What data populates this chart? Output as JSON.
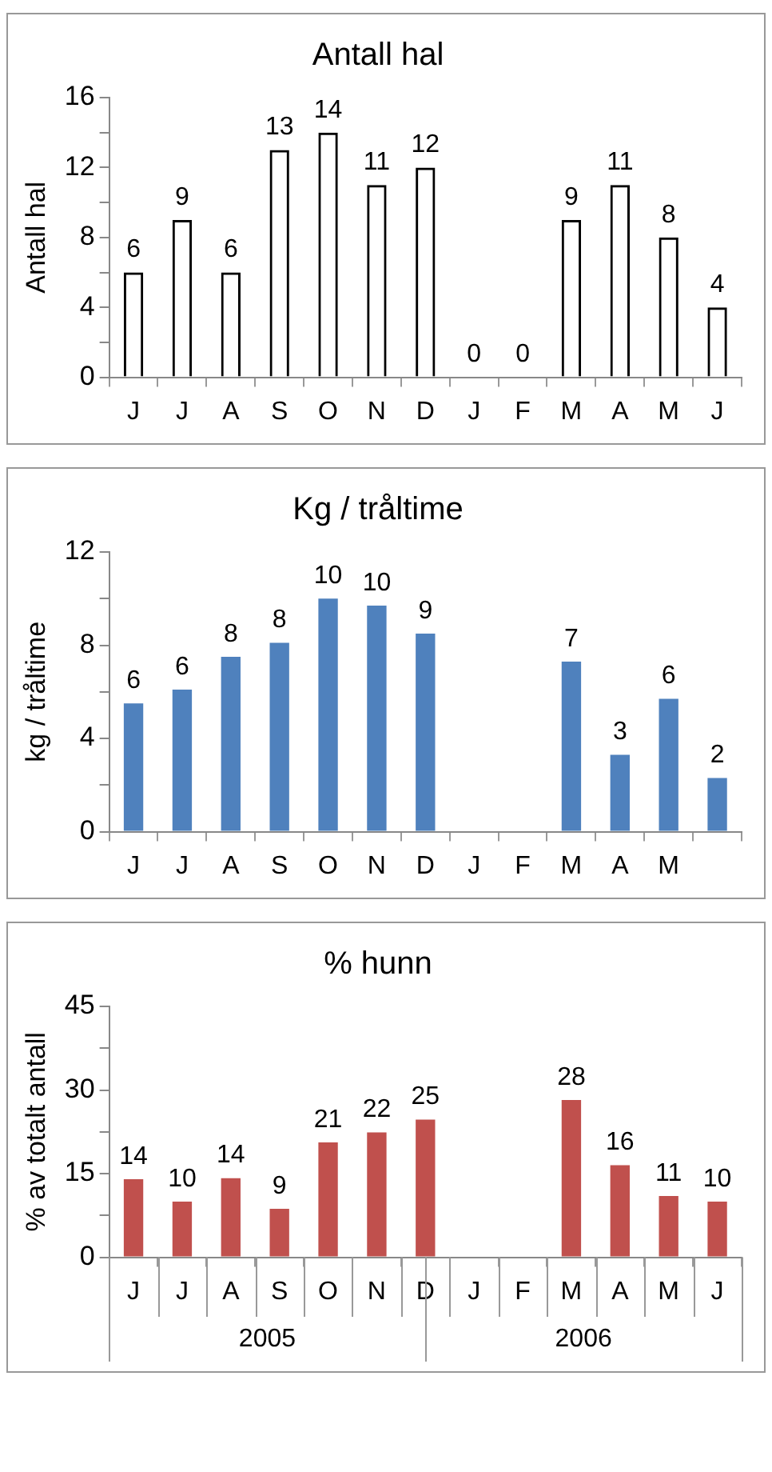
{
  "chart_data": [
    {
      "type": "bar",
      "title": "Antall hal",
      "ylabel": "Antall hal",
      "categories": [
        "J",
        "J",
        "A",
        "S",
        "O",
        "N",
        "D",
        "J",
        "F",
        "M",
        "A",
        "M",
        "J"
      ],
      "values": [
        6,
        9,
        6,
        13,
        14,
        11,
        12,
        0,
        0,
        9,
        11,
        8,
        4
      ],
      "color": "#000000",
      "ylim": [
        0,
        16
      ],
      "yticks": [
        0,
        4,
        8,
        12,
        16
      ],
      "data_labels": true
    },
    {
      "type": "bar",
      "title": "Kg / tråltime",
      "ylabel": "kg / tråltime",
      "categories": [
        "J",
        "J",
        "A",
        "S",
        "O",
        "N",
        "D",
        "J",
        "F",
        "M",
        "A",
        "M",
        null
      ],
      "values": [
        5.5,
        6.1,
        7.5,
        8.1,
        10,
        9.7,
        8.5,
        null,
        null,
        7.3,
        3.3,
        5.7,
        2.3
      ],
      "color": "#4f81bd",
      "value_labels": [
        "6",
        "6",
        "8",
        "8",
        "10",
        "10",
        "9",
        null,
        null,
        "7",
        "3",
        "6",
        "2"
      ],
      "ylim": [
        0,
        12
      ],
      "yticks": [
        0,
        4,
        8,
        12
      ]
    },
    {
      "type": "bar",
      "title": "% hunn",
      "ylabel": "% av totalt antall",
      "categories": [
        "J",
        "J",
        "A",
        "S",
        "O",
        "N",
        "D",
        "J",
        "F",
        "M",
        "A",
        "M",
        "J"
      ],
      "values": [
        14,
        10,
        14.2,
        8.7,
        20.6,
        22.4,
        24.7,
        null,
        null,
        28.2,
        16.5,
        11,
        10
      ],
      "color": "#c0504d",
      "value_labels": [
        "14",
        "10",
        "14",
        "9",
        "21",
        "22",
        "25",
        null,
        null,
        "28",
        "16",
        "11",
        "10"
      ],
      "ylim": [
        0,
        45
      ],
      "yticks": [
        0,
        15,
        30,
        45
      ],
      "annotations": [
        "2005",
        "2006"
      ]
    }
  ]
}
